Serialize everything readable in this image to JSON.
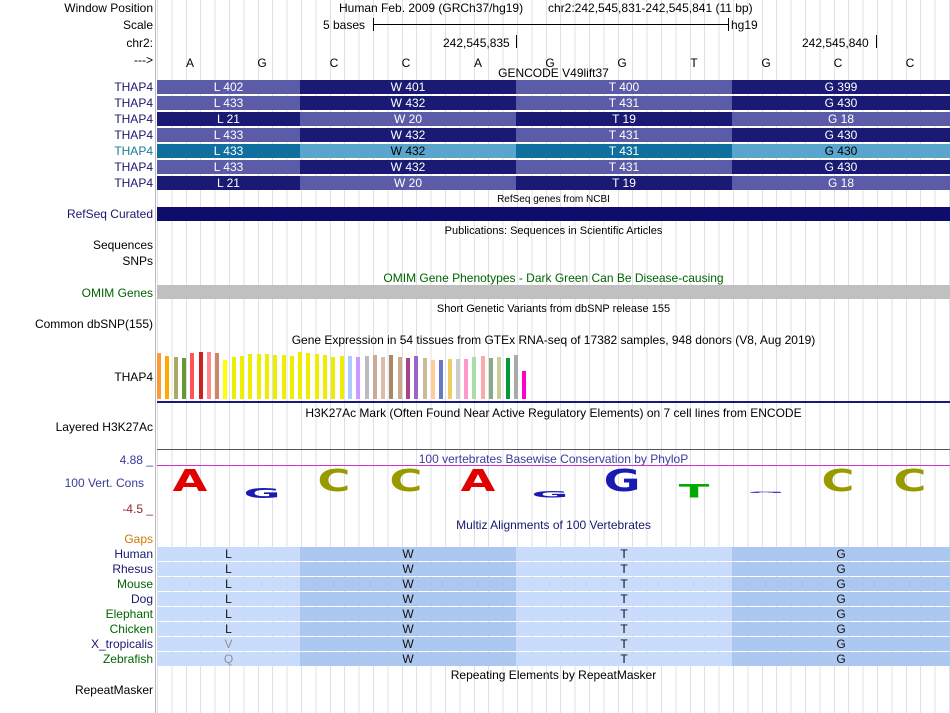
{
  "labels": {
    "window_position": "Window Position",
    "scale": "Scale",
    "chr": "chr2:",
    "arrow": "--->",
    "refseq": "RefSeq Curated",
    "sequences": "Sequences",
    "snps": "SNPs",
    "omim": "OMIM Genes",
    "dbsnp": "Common dbSNP(155)",
    "gtex": "THAP4",
    "h3k27ac": "Layered H3K27Ac",
    "cons": "100 Vert. Cons",
    "cons_max": "4.88 _",
    "cons_min": "-4.5 _",
    "gaps": "Gaps",
    "repeatmasker": "RepeatMasker"
  },
  "header": {
    "assembly": "Human Feb. 2009 (GRCh37/hg19)",
    "position": "chr2:242,545,831-242,545,841 (11 bp)",
    "scale_text": "5 bases",
    "scale_db": "hg19",
    "coord1": "242,545,835",
    "coord2": "242,545,840"
  },
  "bases": [
    "A",
    "G",
    "C",
    "C",
    "A",
    "G",
    "G",
    "T",
    "G",
    "C",
    "C"
  ],
  "titles": {
    "gencode": "GENCODE V49lift37",
    "refseq": "RefSeq genes from NCBI",
    "pubs": "Publications: Sequences in Scientific Articles",
    "omim": "OMIM Gene Phenotypes - Dark Green Can Be Disease-causing",
    "dbsnp": "Short Genetic Variants from dbSNP release 155",
    "gtex": "Gene Expression in 54 tissues from GTEx RNA-seq of 17382 samples, 948 donors (V8, Aug 2019)",
    "h3k27ac": "H3K27Ac Mark (Often Found Near Active Regulatory Elements) on 7 cell lines from ENCODE",
    "cons": "100 vertebrates Basewise Conservation by PhyloP",
    "multiz": "Multiz Alignments of 100 Vertebrates",
    "repeat": "Repeating Elements by RepeatMasker"
  },
  "gencode": [
    {
      "gene": "THAP4",
      "codons": [
        "L 402",
        "W 401",
        "T 400",
        "G 399"
      ]
    },
    {
      "gene": "THAP4",
      "codons": [
        "L 433",
        "W 432",
        "T 431",
        "G 430"
      ]
    },
    {
      "gene": "THAP4",
      "codons": [
        "L 21",
        "W 20",
        "T 19",
        "G 18"
      ]
    },
    {
      "gene": "THAP4",
      "codons": [
        "L 433",
        "W 432",
        "T 431",
        "G 430"
      ]
    },
    {
      "gene": "THAP4",
      "codons": [
        "L 433",
        "W 432",
        "T 431",
        "G 430"
      ]
    },
    {
      "gene": "THAP4",
      "codons": [
        "L 433",
        "W 432",
        "T 431",
        "G 430"
      ]
    },
    {
      "gene": "THAP4",
      "codons": [
        "L 21",
        "W 20",
        "T 19",
        "G 18"
      ]
    }
  ],
  "gtex_colors": [
    "#ff9933",
    "#ffaa00",
    "#aaaa66",
    "#669933",
    "#ff5555",
    "#cc2222",
    "#ff8888",
    "#cc8866",
    "#ffff00",
    "#eeee00",
    "#eeee00",
    "#eeee00",
    "#eeee00",
    "#eeee00",
    "#eeee00",
    "#eeee00",
    "#eeee00",
    "#eeee00",
    "#eeee00",
    "#eeee00",
    "#eeee00",
    "#eeee00",
    "#eeee00",
    "#aaccff",
    "#cc99ff",
    "#bbbbbb",
    "#ccaa99",
    "#ddbbaa",
    "#aa8866",
    "#ccaa88",
    "#aa4488",
    "#9966cc",
    "#ccbb99",
    "#ffcc99",
    "#6677cc",
    "#eecc66",
    "#cccccc",
    "#ff99cc",
    "#aaddaa",
    "#ffaaaa",
    "#88aa88",
    "#cccc99",
    "#009933",
    "#aaaaaa",
    "#ff00cc"
  ],
  "gtex_levels": [
    0.95,
    0.9,
    0.88,
    0.86,
    0.96,
    0.98,
    0.98,
    0.96,
    0.82,
    0.88,
    0.9,
    0.94,
    0.94,
    0.94,
    0.92,
    0.92,
    0.9,
    0.98,
    0.96,
    0.94,
    0.92,
    0.88,
    0.9,
    0.9,
    0.88,
    0.9,
    0.92,
    0.88,
    0.92,
    0.88,
    0.86,
    0.9,
    0.86,
    0.82,
    0.82,
    0.84,
    0.84,
    0.84,
    0.88,
    0.9,
    0.86,
    0.88,
    0.86,
    0.92,
    0.58
  ],
  "multiz": [
    {
      "species": "Human",
      "aa": [
        "L",
        "W",
        "T",
        "G"
      ],
      "muted": false
    },
    {
      "species": "Rhesus",
      "aa": [
        "L",
        "W",
        "T",
        "G"
      ],
      "muted": false
    },
    {
      "species": "Mouse",
      "aa": [
        "L",
        "W",
        "T",
        "G"
      ],
      "muted": false
    },
    {
      "species": "Dog",
      "aa": [
        "L",
        "W",
        "T",
        "G"
      ],
      "muted": false
    },
    {
      "species": "Elephant",
      "aa": [
        "L",
        "W",
        "T",
        "G"
      ],
      "muted": false
    },
    {
      "species": "Chicken",
      "aa": [
        "L",
        "W",
        "T",
        "G"
      ],
      "muted": false
    },
    {
      "species": "X_tropicalis",
      "aa": [
        "V",
        "W",
        "T",
        "G"
      ],
      "muted": true
    },
    {
      "species": "Zebrafish",
      "aa": [
        "Q",
        "W",
        "T",
        "G"
      ],
      "muted": true
    }
  ],
  "colors": {
    "dark": "#1a1a75",
    "light": "#5b5ba8",
    "refseq": "#0d0d6b",
    "omim": "#c0c0c0",
    "cons_line": "#cc33cc"
  }
}
